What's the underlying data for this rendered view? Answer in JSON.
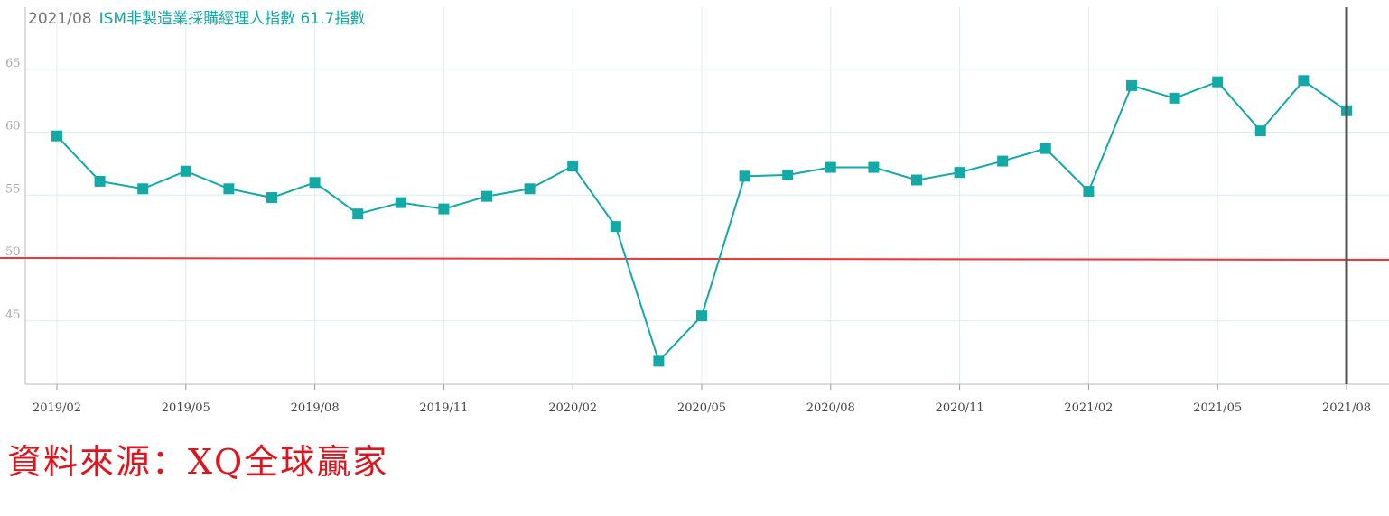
{
  "legend": {
    "date": "2021/08",
    "series": "ISM非製造業採購經理人指數 61.7指數"
  },
  "source": "資料來源：XQ全球贏家",
  "colors": {
    "series": "#13a9a6",
    "reference": "#e8383b",
    "grid": "#dcecf2",
    "cursor": "#555555"
  },
  "chart_data": {
    "type": "line",
    "x": [
      "2019/02",
      "2019/03",
      "2019/04",
      "2019/05",
      "2019/06",
      "2019/07",
      "2019/08",
      "2019/09",
      "2019/10",
      "2019/11",
      "2019/12",
      "2020/01",
      "2020/02",
      "2020/03",
      "2020/04",
      "2020/05",
      "2020/06",
      "2020/07",
      "2020/08",
      "2020/09",
      "2020/10",
      "2020/11",
      "2020/12",
      "2021/01",
      "2021/02",
      "2021/03",
      "2021/04",
      "2021/05",
      "2021/06",
      "2021/07",
      "2021/08"
    ],
    "series": [
      {
        "name": "ISM非製造業採購經理人指數",
        "values": [
          59.7,
          56.1,
          55.5,
          56.9,
          55.5,
          54.8,
          56.0,
          53.5,
          54.4,
          53.9,
          54.9,
          55.5,
          57.3,
          52.5,
          41.8,
          45.4,
          56.5,
          56.6,
          57.2,
          57.2,
          56.2,
          56.8,
          57.7,
          58.7,
          55.3,
          63.7,
          62.7,
          64.0,
          60.1,
          64.1,
          61.7
        ]
      }
    ],
    "reference_line": 50,
    "x_ticks": [
      "2019/02",
      "2019/05",
      "2019/08",
      "2019/11",
      "2020/02",
      "2020/05",
      "2020/08",
      "2020/11",
      "2021/02",
      "2021/05",
      "2021/08"
    ],
    "y_ticks": [
      45,
      50,
      55,
      60,
      65
    ],
    "ylim": [
      40,
      70
    ],
    "grid": true
  }
}
